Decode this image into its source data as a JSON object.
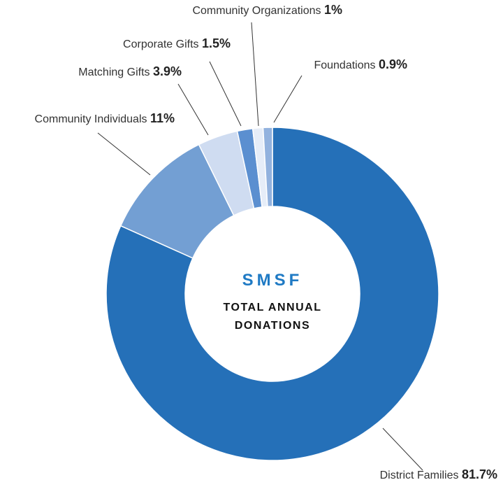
{
  "chart_data": {
    "type": "donut",
    "center_title": "SMSF",
    "center_subtitle": [
      "TOTAL ANNUAL",
      "DONATIONS"
    ],
    "categories": [
      "District Families",
      "Community Individuals",
      "Matching Gifts",
      "Corporate Gifts",
      "Community Organizations",
      "Foundations"
    ],
    "values": [
      81.7,
      11,
      3.9,
      1.5,
      1,
      0.9
    ],
    "value_labels": [
      "81.7%",
      "11%",
      "3.9%",
      "1.5%",
      "1%",
      "0.9%"
    ],
    "colors": [
      "#2570b8",
      "#739fd3",
      "#cfdcf1",
      "#5b8fd0",
      "#e6edf8",
      "#92b2de"
    ]
  }
}
